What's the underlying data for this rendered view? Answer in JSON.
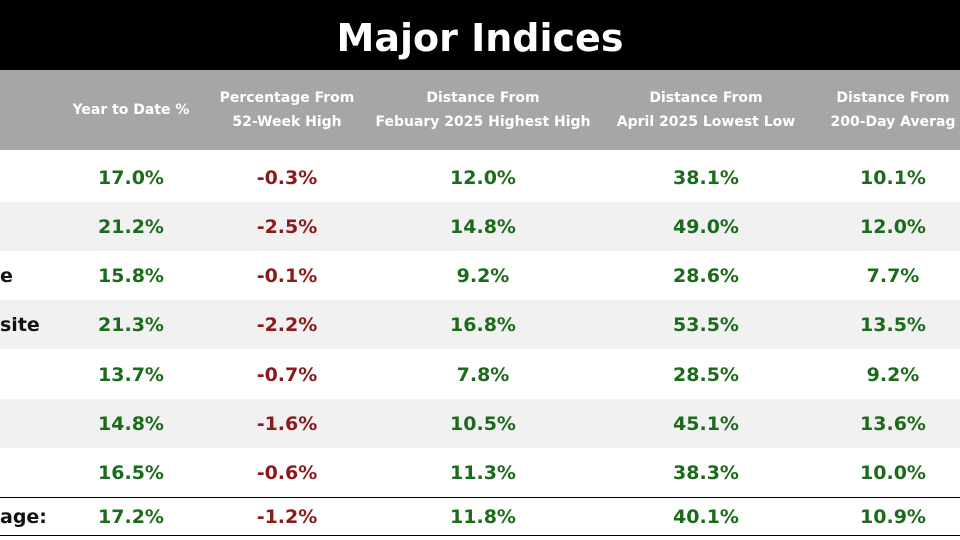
{
  "header": {
    "title": "Major Indices"
  },
  "table": {
    "columns": [
      [
        "Year to Date %"
      ],
      [
        "Percentage From",
        "52-Week High"
      ],
      [
        "Distance From",
        "Febuary 2025 Highest High"
      ],
      [
        "Distance From",
        "April 2025 Lowest Low"
      ],
      [
        "Distance From",
        "200-Day Averag"
      ]
    ],
    "rows": [
      {
        "cells": [
          "17.0%",
          "-0.3%",
          "12.0%",
          "38.1%",
          "10.1%"
        ]
      },
      {
        "cells": [
          "21.2%",
          "-2.5%",
          "14.8%",
          "49.0%",
          "12.0%"
        ]
      },
      {
        "label": "e",
        "cells": [
          "15.8%",
          "-0.1%",
          "9.2%",
          "28.6%",
          "7.7%"
        ]
      },
      {
        "label": "site",
        "cells": [
          "21.3%",
          "-2.2%",
          "16.8%",
          "53.5%",
          "13.5%"
        ]
      },
      {
        "cells": [
          "13.7%",
          "-0.7%",
          "7.8%",
          "28.5%",
          "9.2%"
        ]
      },
      {
        "cells": [
          "14.8%",
          "-1.6%",
          "10.5%",
          "45.1%",
          "13.6%"
        ]
      },
      {
        "cells": [
          "16.5%",
          "-0.6%",
          "11.3%",
          "38.3%",
          "10.0%"
        ]
      },
      {
        "label": "age:",
        "cells": [
          "17.2%",
          "-1.2%",
          "11.8%",
          "40.1%",
          "10.9%"
        ]
      }
    ]
  }
}
